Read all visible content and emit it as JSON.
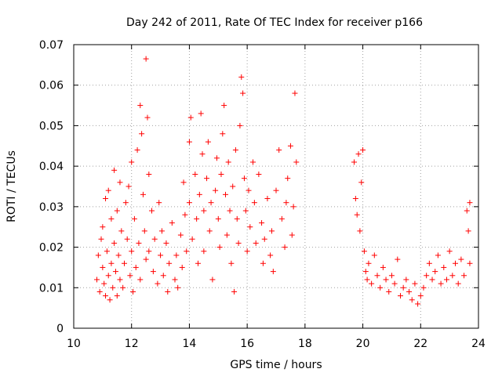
{
  "chart_data": {
    "type": "scatter",
    "title": "Day 242 of 2011, Rate Of TEC Index for receiver p166",
    "xlabel": "GPS time / hours",
    "ylabel": "ROTI / TECUs",
    "xlim": [
      10,
      24
    ],
    "ylim": [
      0,
      0.07
    ],
    "xticks": [
      "10",
      "12",
      "14",
      "16",
      "18",
      "20",
      "22",
      "24"
    ],
    "yticks": [
      "0",
      "0.01",
      "0.02",
      "0.03",
      "0.04",
      "0.05",
      "0.06",
      "0.07"
    ],
    "grid": true,
    "marker": "+",
    "marker_color": "#ff0000",
    "series": [
      {
        "points": [
          [
            10.8,
            0.012
          ],
          [
            10.85,
            0.018
          ],
          [
            10.9,
            0.009
          ],
          [
            10.95,
            0.022
          ],
          [
            11.0,
            0.015
          ],
          [
            11.0,
            0.025
          ],
          [
            11.05,
            0.011
          ],
          [
            11.1,
            0.032
          ],
          [
            11.1,
            0.008
          ],
          [
            11.15,
            0.019
          ],
          [
            11.2,
            0.034
          ],
          [
            11.2,
            0.013
          ],
          [
            11.25,
            0.007
          ],
          [
            11.3,
            0.027
          ],
          [
            11.3,
            0.016
          ],
          [
            11.35,
            0.01
          ],
          [
            11.4,
            0.039
          ],
          [
            11.4,
            0.021
          ],
          [
            11.45,
            0.014
          ],
          [
            11.5,
            0.029
          ],
          [
            11.5,
            0.008
          ],
          [
            11.55,
            0.018
          ],
          [
            11.6,
            0.036
          ],
          [
            11.6,
            0.012
          ],
          [
            11.65,
            0.024
          ],
          [
            11.7,
            0.01
          ],
          [
            11.75,
            0.016
          ],
          [
            11.8,
            0.031
          ],
          [
            11.85,
            0.022
          ],
          [
            11.9,
            0.035
          ],
          [
            11.95,
            0.013
          ],
          [
            12.0,
            0.041
          ],
          [
            12.0,
            0.019
          ],
          [
            12.05,
            0.009
          ],
          [
            12.1,
            0.027
          ],
          [
            12.15,
            0.015
          ],
          [
            12.2,
            0.044
          ],
          [
            12.25,
            0.021
          ],
          [
            12.3,
            0.055
          ],
          [
            12.3,
            0.012
          ],
          [
            12.35,
            0.048
          ],
          [
            12.4,
            0.033
          ],
          [
            12.45,
            0.024
          ],
          [
            12.5,
            0.0665
          ],
          [
            12.5,
            0.017
          ],
          [
            12.55,
            0.052
          ],
          [
            12.6,
            0.038
          ],
          [
            12.6,
            0.019
          ],
          [
            12.7,
            0.029
          ],
          [
            12.75,
            0.014
          ],
          [
            12.8,
            0.022
          ],
          [
            12.9,
            0.011
          ],
          [
            12.95,
            0.031
          ],
          [
            13.0,
            0.018
          ],
          [
            13.05,
            0.024
          ],
          [
            13.1,
            0.013
          ],
          [
            13.2,
            0.021
          ],
          [
            13.25,
            0.009
          ],
          [
            13.3,
            0.016
          ],
          [
            13.4,
            0.026
          ],
          [
            13.5,
            0.012
          ],
          [
            13.55,
            0.018
          ],
          [
            13.6,
            0.01
          ],
          [
            13.7,
            0.023
          ],
          [
            13.75,
            0.015
          ],
          [
            13.8,
            0.036
          ],
          [
            13.85,
            0.028
          ],
          [
            13.9,
            0.019
          ],
          [
            14.0,
            0.046
          ],
          [
            14.0,
            0.031
          ],
          [
            14.05,
            0.052
          ],
          [
            14.1,
            0.022
          ],
          [
            14.2,
            0.038
          ],
          [
            14.25,
            0.027
          ],
          [
            14.3,
            0.016
          ],
          [
            14.35,
            0.033
          ],
          [
            14.4,
            0.053
          ],
          [
            14.45,
            0.043
          ],
          [
            14.5,
            0.029
          ],
          [
            14.5,
            0.019
          ],
          [
            14.6,
            0.037
          ],
          [
            14.65,
            0.046
          ],
          [
            14.7,
            0.024
          ],
          [
            14.75,
            0.031
          ],
          [
            14.8,
            0.012
          ],
          [
            14.9,
            0.034
          ],
          [
            14.95,
            0.042
          ],
          [
            15.0,
            0.027
          ],
          [
            15.05,
            0.02
          ],
          [
            15.1,
            0.038
          ],
          [
            15.15,
            0.048
          ],
          [
            15.2,
            0.055
          ],
          [
            15.25,
            0.033
          ],
          [
            15.3,
            0.023
          ],
          [
            15.35,
            0.041
          ],
          [
            15.4,
            0.029
          ],
          [
            15.45,
            0.016
          ],
          [
            15.5,
            0.035
          ],
          [
            15.55,
            0.009
          ],
          [
            15.6,
            0.044
          ],
          [
            15.65,
            0.027
          ],
          [
            15.7,
            0.021
          ],
          [
            15.75,
            0.05
          ],
          [
            15.8,
            0.062
          ],
          [
            15.85,
            0.058
          ],
          [
            15.9,
            0.037
          ],
          [
            15.95,
            0.029
          ],
          [
            16.0,
            0.019
          ],
          [
            16.05,
            0.034
          ],
          [
            16.1,
            0.025
          ],
          [
            16.2,
            0.041
          ],
          [
            16.25,
            0.031
          ],
          [
            16.3,
            0.021
          ],
          [
            16.4,
            0.038
          ],
          [
            16.5,
            0.026
          ],
          [
            16.55,
            0.016
          ],
          [
            16.6,
            0.022
          ],
          [
            16.7,
            0.032
          ],
          [
            16.8,
            0.018
          ],
          [
            16.85,
            0.024
          ],
          [
            16.9,
            0.014
          ],
          [
            17.0,
            0.034
          ],
          [
            17.1,
            0.044
          ],
          [
            17.2,
            0.027
          ],
          [
            17.3,
            0.02
          ],
          [
            17.35,
            0.031
          ],
          [
            17.4,
            0.037
          ],
          [
            17.5,
            0.045
          ],
          [
            17.55,
            0.023
          ],
          [
            17.6,
            0.03
          ],
          [
            17.65,
            0.058
          ],
          [
            17.7,
            0.041
          ],
          [
            19.7,
            0.041
          ],
          [
            19.75,
            0.032
          ],
          [
            19.8,
            0.028
          ],
          [
            19.85,
            0.043
          ],
          [
            19.9,
            0.024
          ],
          [
            19.95,
            0.036
          ],
          [
            20.0,
            0.044
          ],
          [
            20.05,
            0.019
          ],
          [
            20.1,
            0.014
          ],
          [
            20.15,
            0.012
          ],
          [
            20.2,
            0.016
          ],
          [
            20.3,
            0.011
          ],
          [
            20.4,
            0.018
          ],
          [
            20.5,
            0.013
          ],
          [
            20.6,
            0.01
          ],
          [
            20.7,
            0.015
          ],
          [
            20.8,
            0.012
          ],
          [
            20.9,
            0.009
          ],
          [
            21.0,
            0.013
          ],
          [
            21.1,
            0.011
          ],
          [
            21.2,
            0.017
          ],
          [
            21.3,
            0.008
          ],
          [
            21.4,
            0.01
          ],
          [
            21.5,
            0.012
          ],
          [
            21.6,
            0.009
          ],
          [
            21.7,
            0.007
          ],
          [
            21.8,
            0.011
          ],
          [
            21.9,
            0.006
          ],
          [
            22.0,
            0.008
          ],
          [
            22.1,
            0.01
          ],
          [
            22.2,
            0.013
          ],
          [
            22.3,
            0.016
          ],
          [
            22.4,
            0.012
          ],
          [
            22.5,
            0.014
          ],
          [
            22.6,
            0.018
          ],
          [
            22.7,
            0.011
          ],
          [
            22.8,
            0.015
          ],
          [
            22.9,
            0.012
          ],
          [
            23.0,
            0.019
          ],
          [
            23.1,
            0.013
          ],
          [
            23.2,
            0.016
          ],
          [
            23.3,
            0.011
          ],
          [
            23.4,
            0.017
          ],
          [
            23.5,
            0.013
          ],
          [
            23.6,
            0.029
          ],
          [
            23.65,
            0.024
          ],
          [
            23.7,
            0.016
          ],
          [
            23.7,
            0.031
          ]
        ]
      }
    ]
  }
}
